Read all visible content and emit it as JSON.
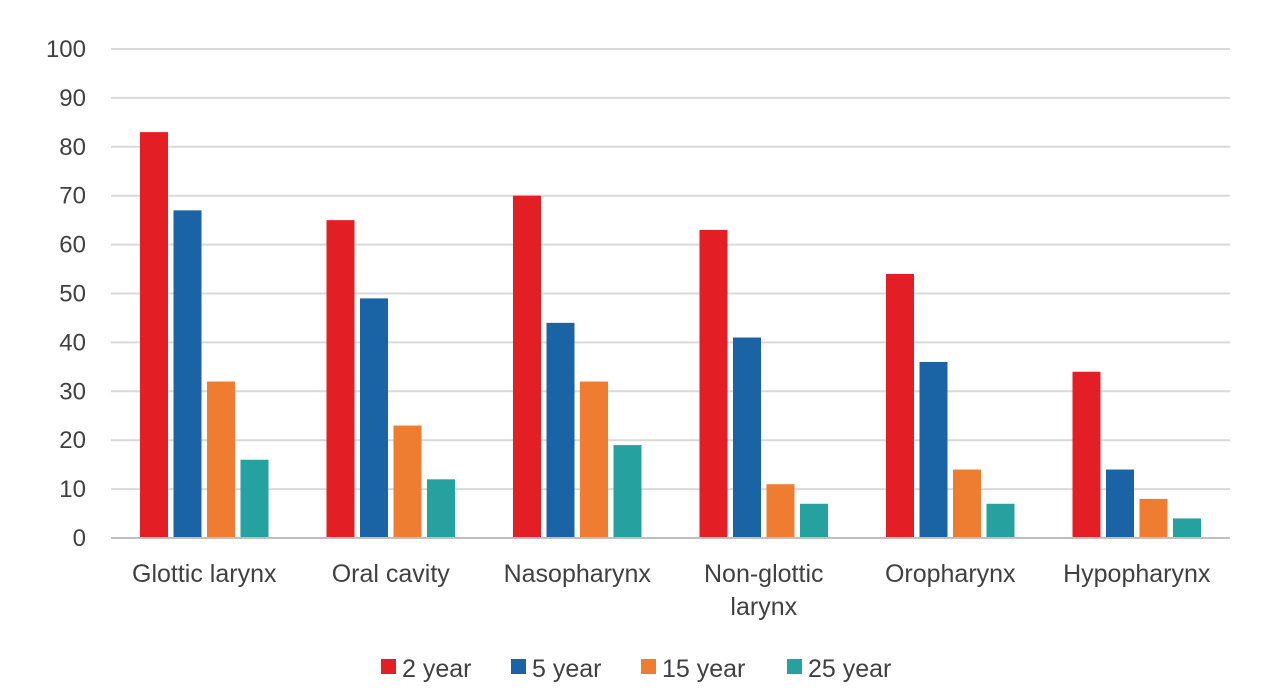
{
  "chart_data": {
    "type": "bar",
    "title": "",
    "xlabel": "",
    "ylabel": "",
    "ylim": [
      0,
      100
    ],
    "yticks": [
      0,
      10,
      20,
      30,
      40,
      50,
      60,
      70,
      80,
      90,
      100
    ],
    "grid": true,
    "legend_position": "bottom",
    "categories": [
      [
        "Glottic larynx"
      ],
      [
        "Oral cavity"
      ],
      [
        "Nasopharynx"
      ],
      [
        "Non-glottic",
        "larynx"
      ],
      [
        "Oropharynx"
      ],
      [
        "Hypopharynx"
      ]
    ],
    "series": [
      {
        "name": "2 year",
        "color": "#e31e24",
        "values": [
          83,
          65,
          70,
          63,
          54,
          34
        ]
      },
      {
        "name": "5 year",
        "color": "#1a63a5",
        "values": [
          67,
          49,
          44,
          41,
          36,
          14
        ]
      },
      {
        "name": "15 year",
        "color": "#ef7d31",
        "values": [
          32,
          23,
          32,
          11,
          14,
          8
        ]
      },
      {
        "name": "25 year",
        "color": "#25a29f",
        "values": [
          16,
          12,
          19,
          7,
          7,
          4
        ]
      }
    ],
    "colors": {
      "grid": "#d9d9d9",
      "axis": "#bfbfbf",
      "text": "#404040"
    }
  }
}
